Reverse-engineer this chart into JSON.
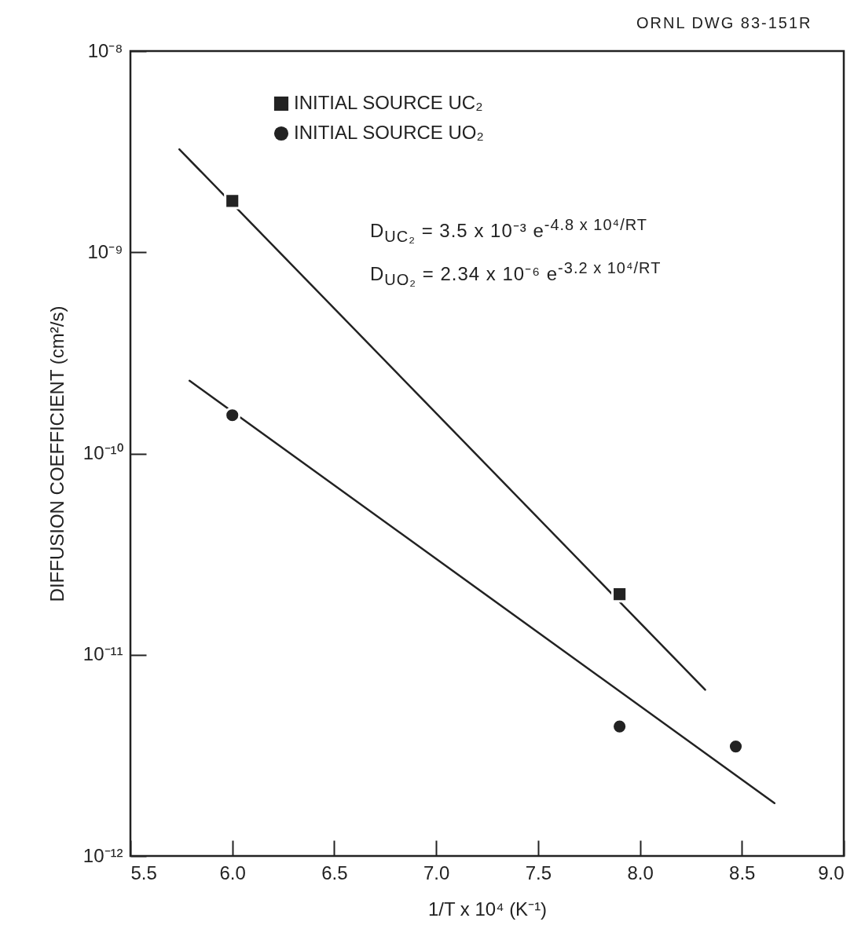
{
  "chart_data": {
    "type": "scatter",
    "xlabel": "1/T x 10⁴ (K⁻¹)",
    "ylabel": "DIFFUSION COEFFICIENT (cm²/s)",
    "log": "y",
    "grid": false,
    "legend": "top left",
    "xlim": [
      5.5,
      9.0
    ],
    "xticks": [
      {
        "value": 5.5,
        "label": "5.5"
      },
      {
        "value": 6,
        "label": "6.0"
      },
      {
        "value": 6.5,
        "label": "6.5"
      },
      {
        "value": 7,
        "label": "7.0"
      },
      {
        "value": 7.5,
        "label": "7.5"
      },
      {
        "value": 8,
        "label": "8.0"
      },
      {
        "value": 8.5,
        "label": "8.5"
      },
      {
        "value": 9,
        "label": "9.0"
      }
    ],
    "ylim": [
      1e-12,
      1e-08
    ],
    "yticks": [
      {
        "value": 1e-12,
        "label": "10⁻¹²"
      },
      {
        "value": 1e-11,
        "label": "10⁻¹¹"
      },
      {
        "value": 1e-10,
        "label": "10⁻¹⁰"
      },
      {
        "value": 1e-09,
        "label": "10⁻⁹"
      },
      {
        "value": 1e-08,
        "label": "10⁻⁸"
      }
    ],
    "series": [
      {
        "name": "INITIAL SOURCE UC₂",
        "type": "scatter",
        "marker": "square",
        "color": "#222222",
        "x": [
          6.0,
          7.9
        ],
        "values": [
          1.8e-09,
          2e-11
        ]
      },
      {
        "name": "INITIAL SOURCE UO₂",
        "type": "scatter",
        "marker": "circle",
        "color": "#222222",
        "x": [
          6.0,
          7.9,
          8.47
        ],
        "values": [
          1.55e-10,
          4.4e-12,
          3.5e-12
        ]
      },
      {
        "type": "line",
        "color": "#222222",
        "x": [
          5.74,
          8.32
        ],
        "values": [
          3.25e-09,
          6.7e-12
        ]
      },
      {
        "type": "line",
        "color": "#222222",
        "x": [
          5.79,
          8.66
        ],
        "values": [
          2.3e-10,
          1.83e-12
        ]
      }
    ],
    "annotations": [
      "ORNL DWG 83-151R",
      "D$_{UC₂}$ = 3.5 x 10⁻³ e$^{-4.8 x 10⁴/RT}$",
      "D$_{UO₂}$ = 2.34 x 10⁻⁶ e$^{-3.2 x 10⁴/RT}$"
    ]
  }
}
